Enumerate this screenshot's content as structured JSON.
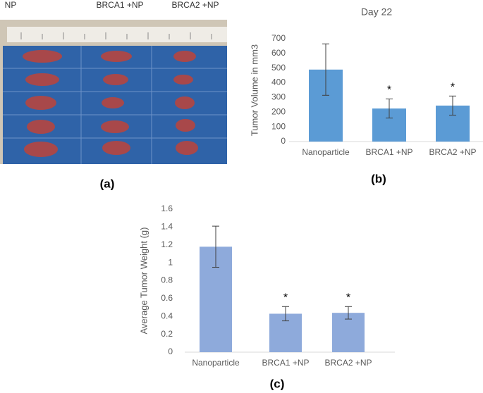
{
  "panel_a": {
    "labels": [
      "NP",
      "BRCA1 +NP",
      "BRCA2 +NP"
    ],
    "caption": "(a)"
  },
  "chart_data": [
    {
      "type": "bar",
      "title": "Day 22",
      "ylabel": "Tumor Volume in mm3",
      "caption": "(b)",
      "categories": [
        "Nanoparticle",
        "BRCA1 +NP",
        "BRCA2 +NP"
      ],
      "values": [
        490,
        225,
        245
      ],
      "errors": [
        175,
        65,
        65
      ],
      "markers": [
        null,
        "*",
        "*"
      ],
      "color": "#5b9bd5",
      "ylim": [
        0,
        700
      ],
      "yticks": [
        0,
        100,
        200,
        300,
        400,
        500,
        600,
        700
      ],
      "grid": false
    },
    {
      "type": "bar",
      "ylabel": "Average Tumor  Weight (g)",
      "caption": "(c)",
      "categories": [
        "Nanoparticle",
        "BRCA1 +NP",
        "BRCA2 +NP"
      ],
      "values": [
        1.18,
        0.43,
        0.44
      ],
      "errors": [
        0.23,
        0.08,
        0.07
      ],
      "markers": [
        null,
        "*",
        "*"
      ],
      "color": "#8eaadb",
      "ylim": [
        0,
        1.6
      ],
      "yticks": [
        0,
        0.2,
        0.4,
        0.6,
        0.8,
        1,
        1.2,
        1.4,
        1.6
      ],
      "grid": false
    }
  ]
}
